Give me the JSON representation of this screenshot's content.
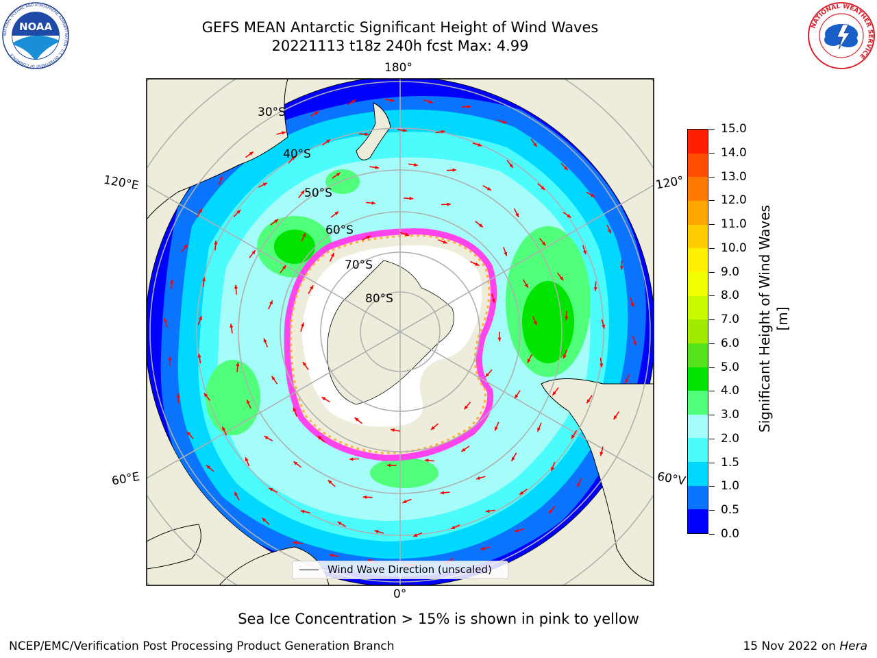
{
  "title": {
    "line1": "GEFS MEAN Antarctic Significant Height of Wind Waves",
    "line2": "20221113 t18z 240h fcst   Max: 4.99"
  },
  "logos": {
    "left": {
      "name": "noaa-logo",
      "text": "NOAA",
      "ring_text": "NATIONAL OCEANIC AND ATMOSPHERIC ADMINISTRATION · U.S. DEPARTMENT OF COMMERCE"
    },
    "right": {
      "name": "nws-logo",
      "ring_text": "NATIONAL WEATHER SERVICE"
    }
  },
  "map": {
    "projection": "south-polar-stereographic",
    "longitude_labels": {
      "top": "180°",
      "bottom": "0°",
      "upper_left": "120°E",
      "lower_left": "60°E",
      "upper_right": "120°",
      "lower_right": "60°V"
    },
    "latitude_labels": [
      "30°S",
      "40°S",
      "50°S",
      "60°S",
      "70°S",
      "80°S"
    ],
    "land_color": "#eeecda",
    "ice_colors": [
      "#ff44ee",
      "#ffb040",
      "#ffffff"
    ]
  },
  "colorbar": {
    "label": "Significant Height of Wind Waves [m]",
    "ticks": [
      "0.0",
      "0.5",
      "1.0",
      "1.5",
      "2.0",
      "3.0",
      "4.0",
      "5.0",
      "6.0",
      "7.0",
      "8.0",
      "9.0",
      "10.0",
      "11.0",
      "12.0",
      "13.0",
      "14.0",
      "15.0"
    ],
    "colors": [
      "#0000ff",
      "#0a74ff",
      "#00d8ff",
      "#4cfcfc",
      "#a5fcf8",
      "#50ff7a",
      "#00e400",
      "#56e21a",
      "#a2ea00",
      "#cafa00",
      "#f0ff00",
      "#ffef00",
      "#ffcd00",
      "#ffa700",
      "#ff7a00",
      "#ff4e00",
      "#ff2000"
    ]
  },
  "legend": {
    "label": "Wind Wave Direction (unscaled)"
  },
  "footer": {
    "note": "Sea Ice Concentration > 15% is shown in pink to yellow",
    "credit": "NCEP/EMC/Verification Post Processing Product Generation Branch",
    "date": "15 Nov 2022 on",
    "system": "Hera"
  }
}
